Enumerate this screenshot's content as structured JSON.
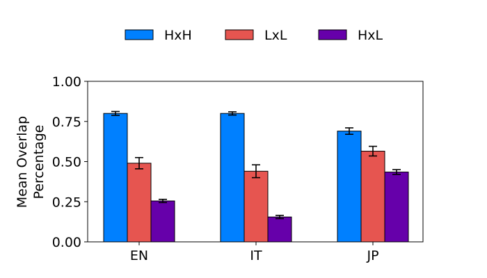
{
  "chart_data": {
    "type": "bar",
    "title": "",
    "xlabel": "",
    "ylabel_lines": [
      "Mean Overlap",
      "Percentage"
    ],
    "categories": [
      "EN",
      "IT",
      "JP"
    ],
    "ylim": [
      0,
      1.0
    ],
    "yticks": [
      "0.00",
      "0.25",
      "0.50",
      "0.75",
      "1.00"
    ],
    "ytick_values": [
      0,
      0.25,
      0.5,
      0.75,
      1.0
    ],
    "grid": false,
    "legend_position": "top-center",
    "series": [
      {
        "name": "HxH",
        "color": "#0080ff",
        "values": [
          0.8,
          0.8,
          0.69
        ],
        "errors": [
          0.012,
          0.01,
          0.02
        ]
      },
      {
        "name": "LxL",
        "color": "#e65550",
        "values": [
          0.49,
          0.44,
          0.565
        ],
        "errors": [
          0.035,
          0.04,
          0.03
        ]
      },
      {
        "name": "HxL",
        "color": "#6600aa",
        "values": [
          0.255,
          0.155,
          0.435
        ],
        "errors": [
          0.01,
          0.01,
          0.015
        ]
      }
    ]
  }
}
